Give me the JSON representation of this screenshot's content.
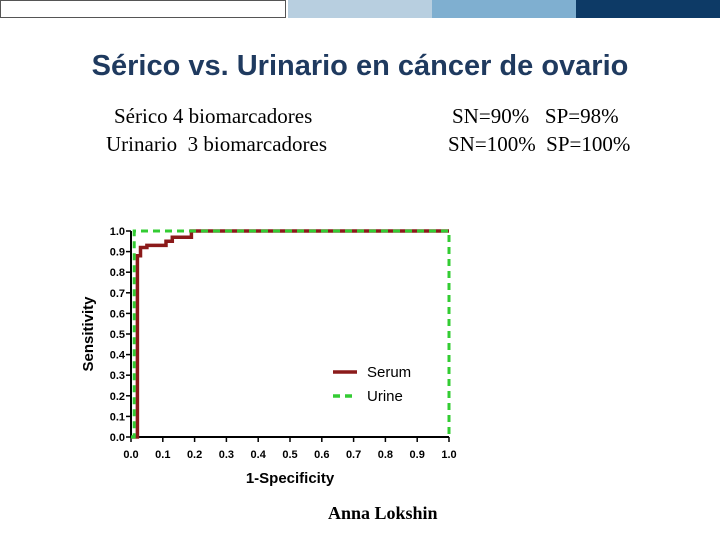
{
  "header_bar": {
    "colors": [
      "#ffffff",
      "#b8cfe0",
      "#7fafd0",
      "#0d3a66"
    ]
  },
  "title": "Sérico vs. Urinario en cáncer de ovario",
  "stats": {
    "serum_label": "Sérico 4 biomarcadores",
    "urine_label": "Urinario  3 biomarcadores",
    "serum_values": "SN=90%   SP=98%",
    "urine_values": "SN=100%  SP=100%"
  },
  "author": "Anna Lokshin",
  "chart_data": {
    "type": "line",
    "xlabel": "1-Specificity",
    "ylabel": "Sensitivity",
    "xlim": [
      0,
      1
    ],
    "ylim": [
      0,
      1
    ],
    "xticks": [
      "0.0",
      "0.1",
      "0.2",
      "0.3",
      "0.4",
      "0.5",
      "0.6",
      "0.7",
      "0.8",
      "0.9",
      "1.0"
    ],
    "yticks": [
      "0.0",
      "0.1",
      "0.2",
      "0.3",
      "0.4",
      "0.5",
      "0.6",
      "0.7",
      "0.8",
      "0.9",
      "1.0"
    ],
    "legend_position": "lower-right",
    "grid": false,
    "series": [
      {
        "name": "Serum",
        "color": "#8b1a1a",
        "style": "solid",
        "x": [
          0,
          0.02,
          0.02,
          0.03,
          0.03,
          0.05,
          0.05,
          0.11,
          0.11,
          0.13,
          0.13,
          0.19,
          0.19,
          1.0
        ],
        "y": [
          0,
          0,
          0.88,
          0.88,
          0.92,
          0.92,
          0.93,
          0.93,
          0.95,
          0.95,
          0.97,
          0.97,
          1.0,
          1.0
        ]
      },
      {
        "name": "Urine",
        "color": "#33cc33",
        "style": "dashed",
        "x": [
          0,
          0.01,
          0.01,
          1.0,
          1.0
        ],
        "y": [
          0,
          0,
          1.0,
          1.0,
          0
        ]
      }
    ]
  }
}
